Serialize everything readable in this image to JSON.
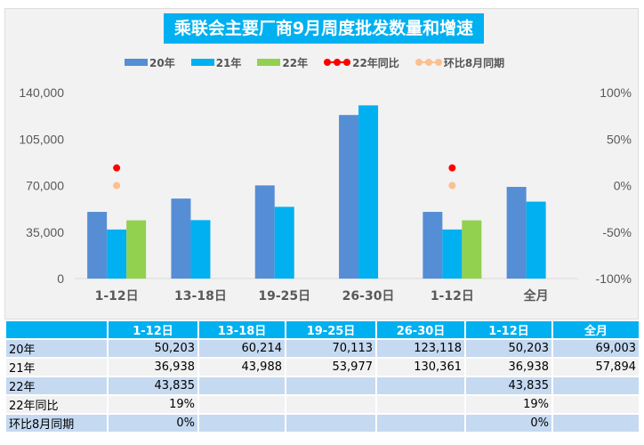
{
  "chart_data": {
    "type": "bar",
    "title": "乘联会主要厂商9月周度批发数量和增速",
    "categories": [
      "1-12日",
      "13-18日",
      "19-25日",
      "26-30日",
      "1-12日",
      "全月"
    ],
    "series": [
      {
        "name": "20年",
        "type": "bar",
        "color": "#558ed5",
        "values": [
          50203,
          60214,
          70113,
          123118,
          50203,
          69003
        ]
      },
      {
        "name": "21年",
        "type": "bar",
        "color": "#00b0f0",
        "values": [
          36938,
          43988,
          53977,
          130361,
          36938,
          57894
        ]
      },
      {
        "name": "22年",
        "type": "bar",
        "color": "#92d050",
        "values": [
          43835,
          null,
          null,
          null,
          43835,
          null
        ]
      },
      {
        "name": "22年同比",
        "type": "scatter",
        "axis": "right",
        "color": "#ff0000",
        "values": [
          0.19,
          null,
          null,
          null,
          0.19,
          null
        ]
      },
      {
        "name": "环比8月同期",
        "type": "scatter",
        "axis": "right",
        "color": "#fac090",
        "values": [
          0,
          null,
          null,
          null,
          0,
          null
        ]
      }
    ],
    "ylim": [
      0,
      140000
    ],
    "yticks": [
      "0",
      "35,000",
      "70,000",
      "105,000",
      "140,000"
    ],
    "y2lim": [
      -1,
      1
    ],
    "y2ticks": [
      "-100%",
      "-50%",
      "0%",
      "50%",
      "100%"
    ],
    "legend": "top"
  },
  "table": {
    "headers": [
      "",
      "1-12日",
      "13-18日",
      "19-25日",
      "26-30日",
      "1-12日",
      "全月"
    ],
    "rows": [
      {
        "label": "20年",
        "cells": [
          "50,203",
          "60,214",
          "70,113",
          "123,118",
          "50,203",
          "69,003"
        ]
      },
      {
        "label": "21年",
        "cells": [
          "36,938",
          "43,988",
          "53,977",
          "130,361",
          "36,938",
          "57,894"
        ]
      },
      {
        "label": "22年",
        "cells": [
          "43,835",
          "",
          "",
          "",
          "43,835",
          ""
        ]
      },
      {
        "label": "22年同比",
        "cells": [
          "19%",
          "",
          "",
          "",
          "19%",
          ""
        ]
      },
      {
        "label": "环比8月同期",
        "cells": [
          "0%",
          "",
          "",
          "",
          "0%",
          ""
        ]
      }
    ]
  }
}
